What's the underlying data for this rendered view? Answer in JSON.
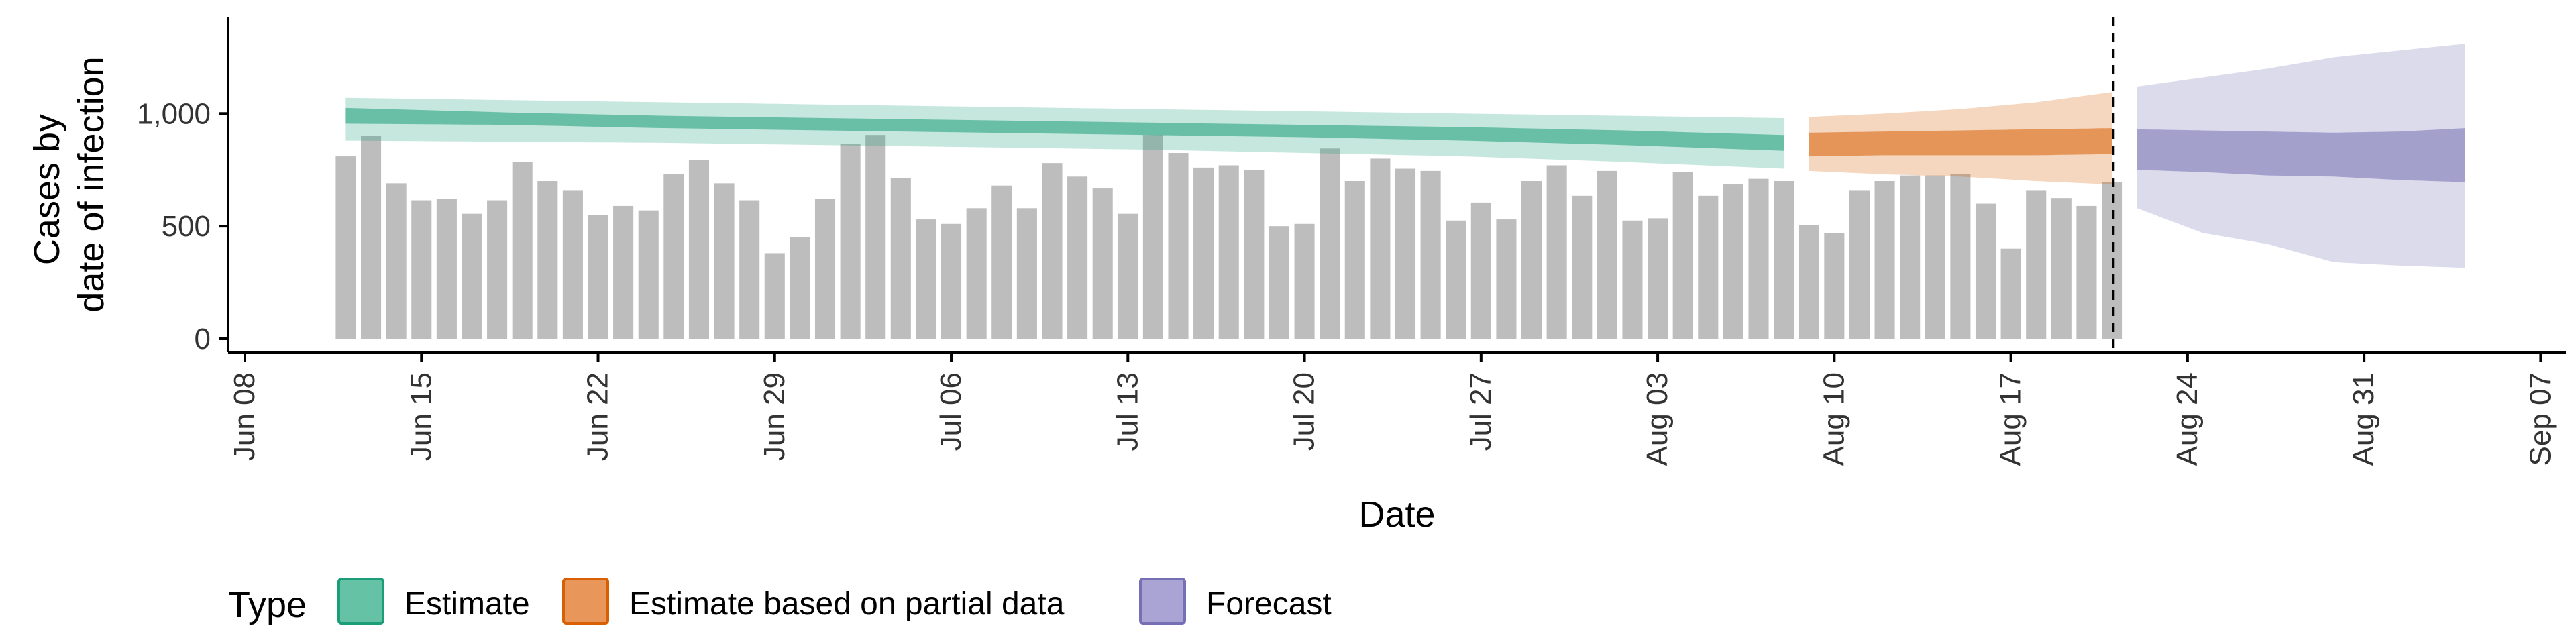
{
  "chart_data": {
    "type": "bar",
    "xlabel": "Date",
    "ylabel_lines": [
      "Cases by",
      "date of infection"
    ],
    "x_range": [
      "2020-06-08",
      "2020-09-08"
    ],
    "ylim": [
      0,
      1400
    ],
    "x_ticks": [
      {
        "date": "2020-06-08",
        "label": "Jun 08"
      },
      {
        "date": "2020-06-15",
        "label": "Jun 15"
      },
      {
        "date": "2020-06-22",
        "label": "Jun 22"
      },
      {
        "date": "2020-06-29",
        "label": "Jun 29"
      },
      {
        "date": "2020-07-06",
        "label": "Jul 06"
      },
      {
        "date": "2020-07-13",
        "label": "Jul 13"
      },
      {
        "date": "2020-07-20",
        "label": "Jul 20"
      },
      {
        "date": "2020-07-27",
        "label": "Jul 27"
      },
      {
        "date": "2020-08-03",
        "label": "Aug 03"
      },
      {
        "date": "2020-08-10",
        "label": "Aug 10"
      },
      {
        "date": "2020-08-17",
        "label": "Aug 17"
      },
      {
        "date": "2020-08-24",
        "label": "Aug 24"
      },
      {
        "date": "2020-08-31",
        "label": "Aug 31"
      },
      {
        "date": "2020-09-07",
        "label": "Sep 07"
      }
    ],
    "y_ticks": [
      {
        "value": 0,
        "label": "0"
      },
      {
        "value": 500,
        "label": "500"
      },
      {
        "value": 1000,
        "label": "1,000"
      }
    ],
    "bars": {
      "start_date": "2020-06-12",
      "values": [
        810,
        900,
        690,
        615,
        620,
        555,
        615,
        785,
        700,
        660,
        550,
        590,
        570,
        730,
        795,
        690,
        615,
        380,
        450,
        620,
        865,
        905,
        715,
        530,
        510,
        580,
        680,
        580,
        780,
        720,
        670,
        555,
        905,
        825,
        760,
        770,
        750,
        500,
        510,
        845,
        700,
        800,
        755,
        745,
        525,
        605,
        530,
        700,
        770,
        635,
        745,
        525,
        535,
        740,
        635,
        685,
        710,
        700,
        505,
        470,
        660,
        700,
        725,
        725,
        730,
        600,
        400,
        660,
        625,
        590,
        695
      ]
    },
    "cutoff_date": "2020-08-21",
    "series": [
      {
        "name": "Estimate",
        "start_date": "2020-06-12",
        "step_days": 7,
        "median": [
          990,
          975,
          960,
          950,
          940,
          930,
          920,
          910,
          895,
          875
        ],
        "inner": [
          [
            955,
            1025
          ],
          [
            950,
            1005
          ],
          [
            935,
            990
          ],
          [
            925,
            980
          ],
          [
            915,
            970
          ],
          [
            905,
            960
          ],
          [
            895,
            950
          ],
          [
            880,
            940
          ],
          [
            860,
            925
          ],
          [
            835,
            905
          ]
        ],
        "outer": [
          [
            880,
            1070
          ],
          [
            875,
            1060
          ],
          [
            870,
            1050
          ],
          [
            860,
            1040
          ],
          [
            850,
            1030
          ],
          [
            840,
            1020
          ],
          [
            825,
            1010
          ],
          [
            810,
            1000
          ],
          [
            785,
            990
          ],
          [
            755,
            980
          ]
        ]
      },
      {
        "name": "Estimate based on partial data",
        "start_date": "2020-08-09",
        "step_days": 3,
        "median": [
          860,
          865,
          875,
          880,
          885
        ],
        "inner": [
          [
            810,
            915
          ],
          [
            815,
            920
          ],
          [
            815,
            925
          ],
          [
            815,
            930
          ],
          [
            820,
            935
          ]
        ],
        "outer": [
          [
            745,
            985
          ],
          [
            730,
            1000
          ],
          [
            720,
            1020
          ],
          [
            700,
            1050
          ],
          [
            685,
            1095
          ]
        ]
      },
      {
        "name": "Forecast",
        "start_date": "2020-08-22",
        "step_days": 3,
        "median": [
          830,
          825,
          820,
          815,
          815,
          810
        ],
        "inner": [
          [
            750,
            930
          ],
          [
            740,
            925
          ],
          [
            725,
            920
          ],
          [
            720,
            915
          ],
          [
            705,
            920
          ],
          [
            695,
            935
          ]
        ],
        "outer": [
          [
            580,
            1120
          ],
          [
            470,
            1160
          ],
          [
            420,
            1200
          ],
          [
            340,
            1250
          ],
          [
            325,
            1280
          ],
          [
            315,
            1310
          ]
        ]
      }
    ],
    "legend": {
      "title": "Type",
      "position": "bottom",
      "items": [
        {
          "label": "Estimate",
          "fill": "#66c2a5",
          "border": "#1b9e77"
        },
        {
          "label": "Estimate based on partial data",
          "fill": "#e8965a",
          "border": "#d95f02"
        },
        {
          "label": "Forecast",
          "fill": "#a9a4d3",
          "border": "#7570b3"
        }
      ]
    },
    "colors": {
      "bar": "#bdbdbd",
      "estimate": "#1b9e77",
      "partial": "#d95f02",
      "forecast": "#7570b3",
      "axis": "#000000"
    },
    "grid": false
  }
}
